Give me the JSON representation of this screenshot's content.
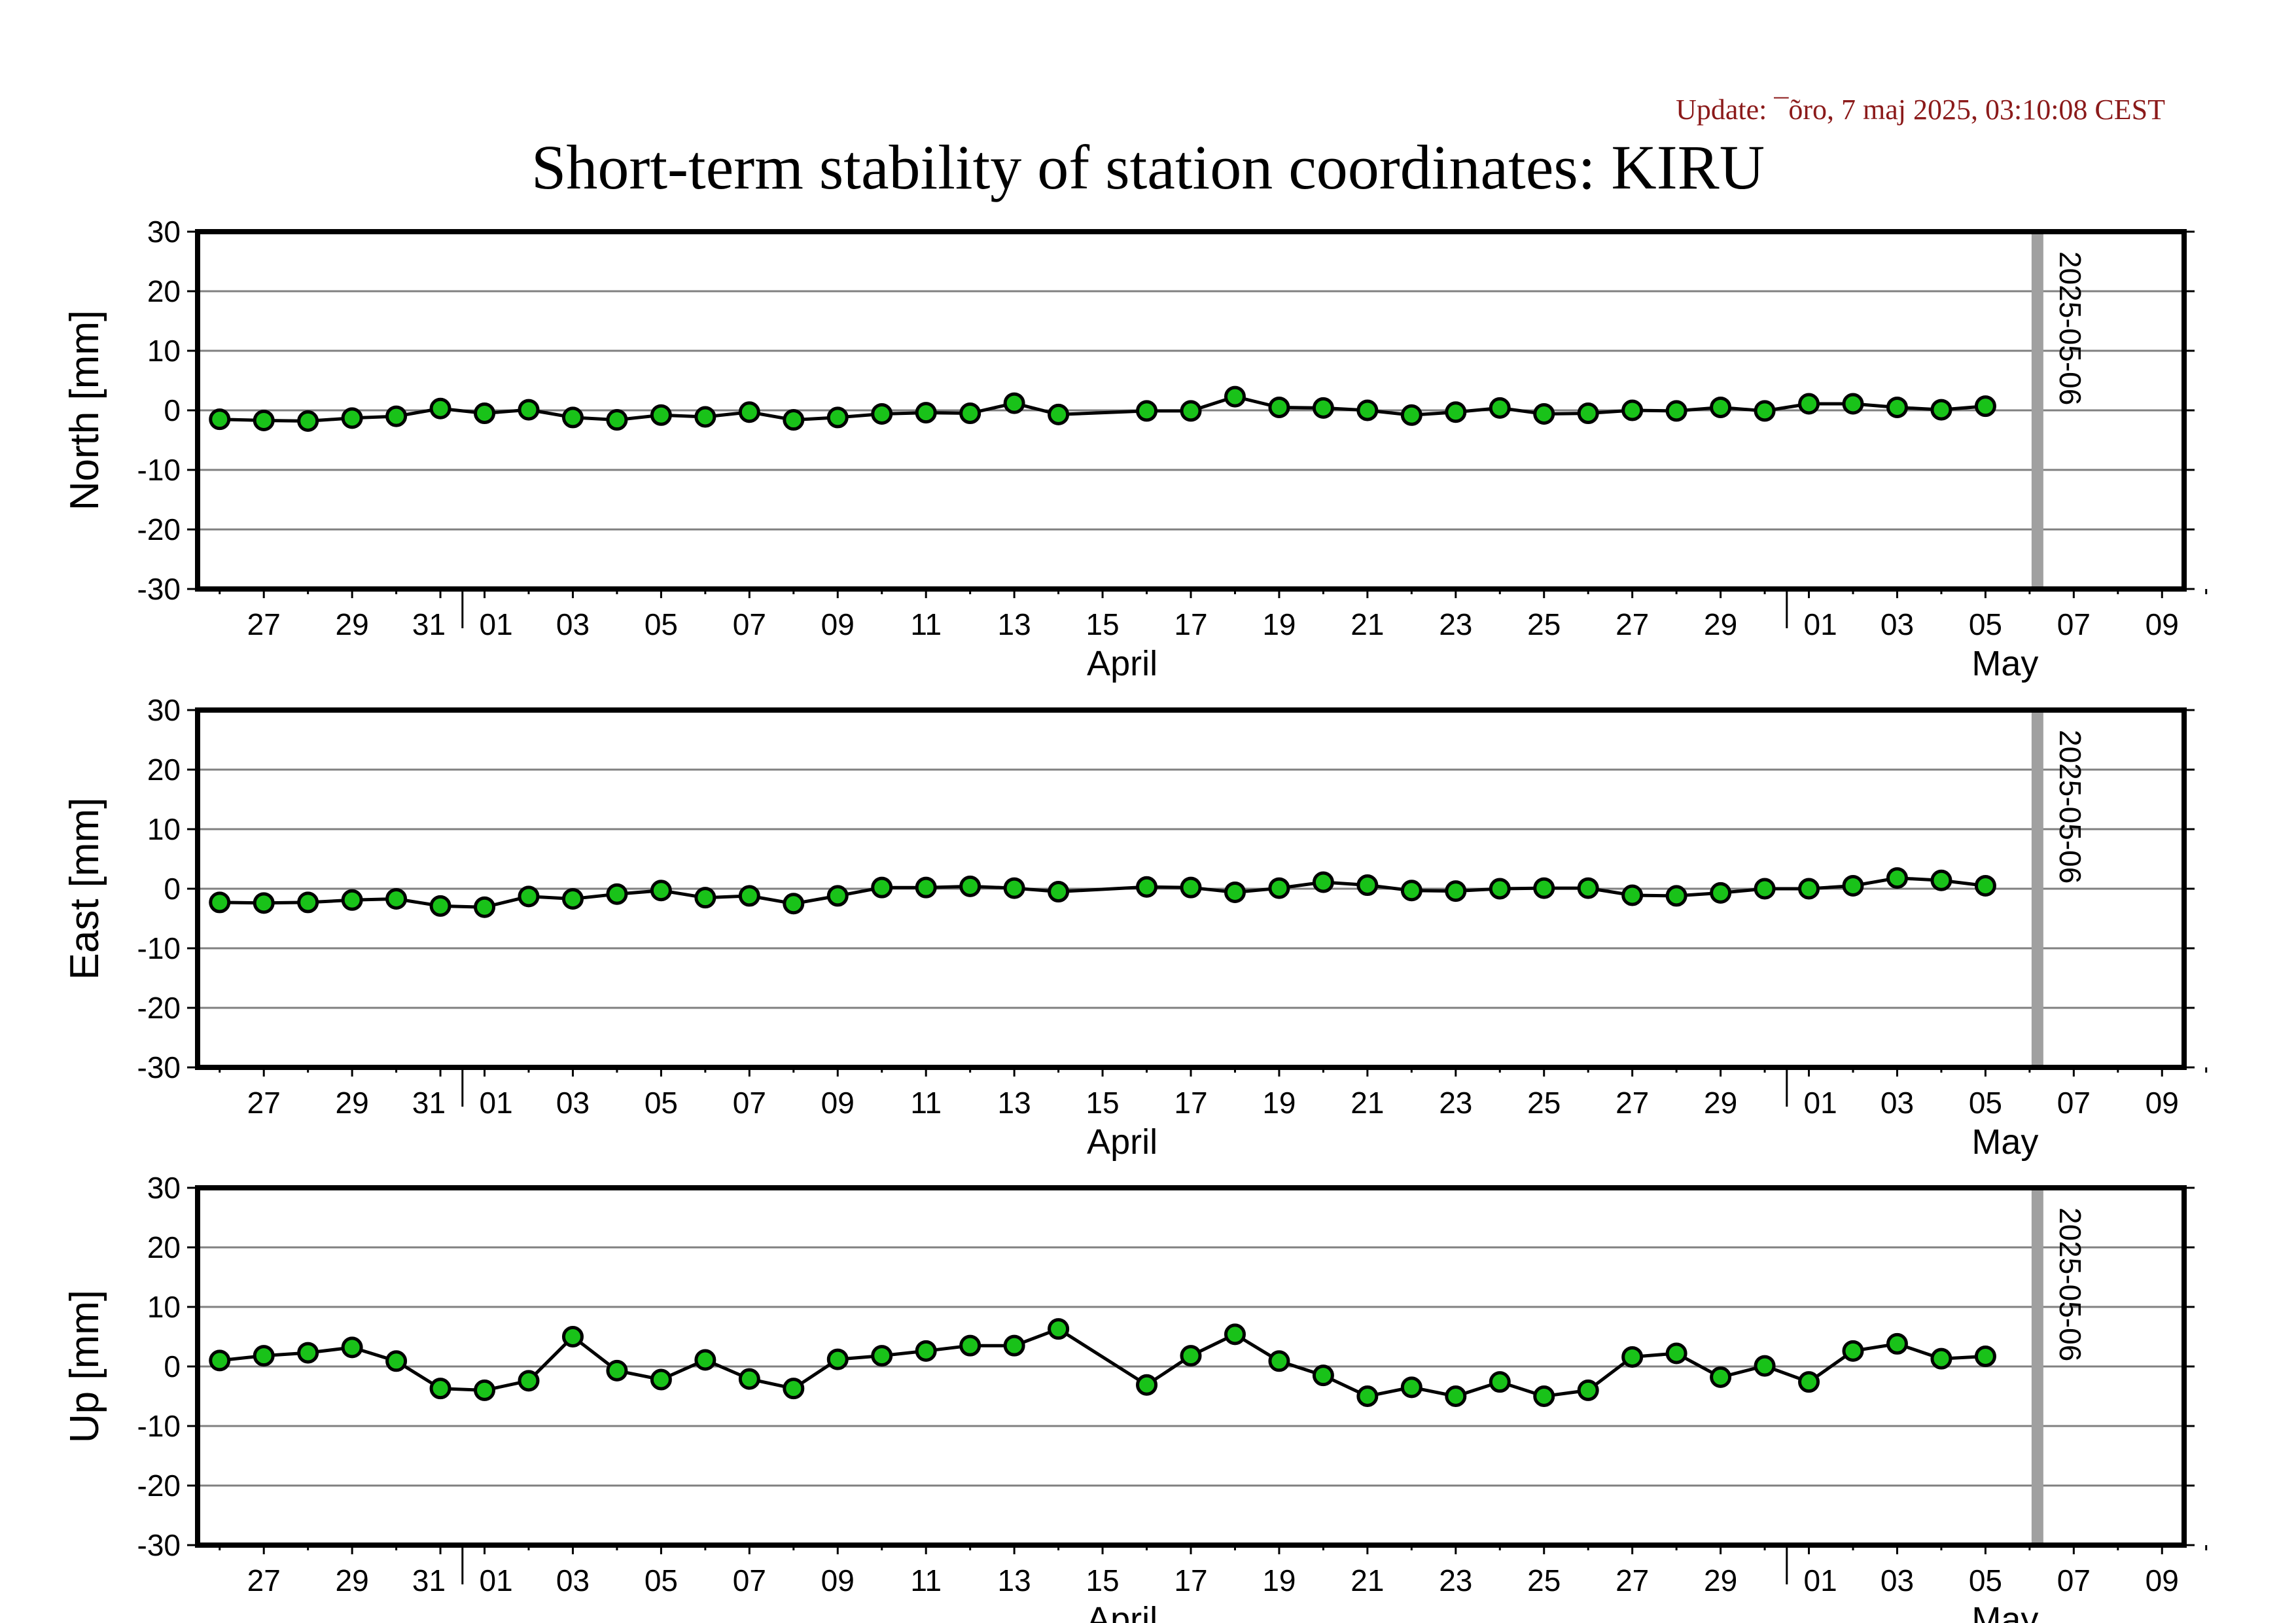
{
  "update_text": "Update: ¯õro, 7 maj 2025, 03:10:08 CEST",
  "title": "Short-term stability of station coordinates: KIRU",
  "colors": {
    "point_fill": "#19c219",
    "point_stroke": "#000000",
    "line": "#000000",
    "grid": "#808080",
    "marker_line": "#a0a0a0",
    "update_text": "#8b1a1a"
  },
  "chart_data": [
    {
      "type": "line",
      "ylabel": "North [mm]",
      "ylim": [
        -30,
        30
      ],
      "yticks": [
        30,
        20,
        10,
        0,
        -10,
        -20,
        -30
      ],
      "grid": true,
      "x_start": "2025-03-26",
      "x_end": "2025-05-10",
      "xtick_labels": [
        "27",
        "29",
        "31",
        "01",
        "03",
        "05",
        "07",
        "09",
        "11",
        "13",
        "15",
        "17",
        "19",
        "21",
        "23",
        "25",
        "27",
        "29",
        "01",
        "03",
        "05",
        "07",
        "09"
      ],
      "month_labels": [
        "April",
        "May"
      ],
      "marker_date": "2025-05-06",
      "marker_label": "2025-05-06",
      "x": [
        "2025-03-26",
        "2025-03-27",
        "2025-03-28",
        "2025-03-29",
        "2025-03-30",
        "2025-03-31",
        "2025-04-01",
        "2025-04-02",
        "2025-04-03",
        "2025-04-04",
        "2025-04-05",
        "2025-04-06",
        "2025-04-07",
        "2025-04-08",
        "2025-04-09",
        "2025-04-10",
        "2025-04-11",
        "2025-04-12",
        "2025-04-13",
        "2025-04-14",
        "2025-04-16",
        "2025-04-17",
        "2025-04-18",
        "2025-04-19",
        "2025-04-20",
        "2025-04-21",
        "2025-04-22",
        "2025-04-23",
        "2025-04-24",
        "2025-04-25",
        "2025-04-26",
        "2025-04-27",
        "2025-04-28",
        "2025-04-29",
        "2025-04-30",
        "2025-05-01",
        "2025-05-02",
        "2025-05-03",
        "2025-05-04",
        "2025-05-05"
      ],
      "y": [
        -1.5,
        -1.7,
        -1.8,
        -1.3,
        -1.0,
        0.3,
        -0.5,
        0.1,
        -1.2,
        -1.6,
        -0.8,
        -1.1,
        -0.3,
        -1.6,
        -1.2,
        -0.6,
        -0.4,
        -0.5,
        1.2,
        -0.7,
        -0.1,
        -0.1,
        2.3,
        0.5,
        0.4,
        0.0,
        -0.8,
        -0.3,
        0.4,
        -0.6,
        -0.5,
        0.0,
        -0.1,
        0.5,
        -0.1,
        1.1,
        1.1,
        0.5,
        0.1,
        0.7
      ]
    },
    {
      "type": "line",
      "ylabel": "East [mm]",
      "ylim": [
        -30,
        30
      ],
      "yticks": [
        30,
        20,
        10,
        0,
        -10,
        -20,
        -30
      ],
      "grid": true,
      "x_start": "2025-03-26",
      "x_end": "2025-05-10",
      "xtick_labels": [
        "27",
        "29",
        "31",
        "01",
        "03",
        "05",
        "07",
        "09",
        "11",
        "13",
        "15",
        "17",
        "19",
        "21",
        "23",
        "25",
        "27",
        "29",
        "01",
        "03",
        "05",
        "07",
        "09"
      ],
      "month_labels": [
        "April",
        "May"
      ],
      "marker_date": "2025-05-06",
      "marker_label": "2025-05-06",
      "x": [
        "2025-03-26",
        "2025-03-27",
        "2025-03-28",
        "2025-03-29",
        "2025-03-30",
        "2025-03-31",
        "2025-04-01",
        "2025-04-02",
        "2025-04-03",
        "2025-04-04",
        "2025-04-05",
        "2025-04-06",
        "2025-04-07",
        "2025-04-08",
        "2025-04-09",
        "2025-04-10",
        "2025-04-11",
        "2025-04-12",
        "2025-04-13",
        "2025-04-14",
        "2025-04-16",
        "2025-04-17",
        "2025-04-18",
        "2025-04-19",
        "2025-04-20",
        "2025-04-21",
        "2025-04-22",
        "2025-04-23",
        "2025-04-24",
        "2025-04-25",
        "2025-04-26",
        "2025-04-27",
        "2025-04-28",
        "2025-04-29",
        "2025-04-30",
        "2025-05-01",
        "2025-05-02",
        "2025-05-03",
        "2025-05-04",
        "2025-05-05"
      ],
      "y": [
        -2.3,
        -2.4,
        -2.3,
        -1.9,
        -1.7,
        -2.9,
        -3.1,
        -1.3,
        -1.7,
        -0.9,
        -0.3,
        -1.5,
        -1.2,
        -2.5,
        -1.2,
        0.2,
        0.2,
        0.4,
        0.1,
        -0.5,
        0.3,
        0.2,
        -0.6,
        0.1,
        1.1,
        0.6,
        -0.3,
        -0.4,
        0.0,
        0.1,
        0.1,
        -1.1,
        -1.2,
        -0.7,
        0.0,
        0.0,
        0.5,
        1.8,
        1.4,
        0.5
      ]
    },
    {
      "type": "line",
      "ylabel": "Up [mm]",
      "ylim": [
        -30,
        30
      ],
      "yticks": [
        30,
        20,
        10,
        0,
        -10,
        -20,
        -30
      ],
      "grid": true,
      "x_start": "2025-03-26",
      "x_end": "2025-05-10",
      "xtick_labels": [
        "27",
        "29",
        "31",
        "01",
        "03",
        "05",
        "07",
        "09",
        "11",
        "13",
        "15",
        "17",
        "19",
        "21",
        "23",
        "25",
        "27",
        "29",
        "01",
        "03",
        "05",
        "07",
        "09"
      ],
      "month_labels": [
        "April",
        "May"
      ],
      "marker_date": "2025-05-06",
      "marker_label": "2025-05-06",
      "x": [
        "2025-03-26",
        "2025-03-27",
        "2025-03-28",
        "2025-03-29",
        "2025-03-30",
        "2025-03-31",
        "2025-04-01",
        "2025-04-02",
        "2025-04-03",
        "2025-04-04",
        "2025-04-05",
        "2025-04-06",
        "2025-04-07",
        "2025-04-08",
        "2025-04-09",
        "2025-04-10",
        "2025-04-11",
        "2025-04-12",
        "2025-04-13",
        "2025-04-14",
        "2025-04-16",
        "2025-04-17",
        "2025-04-18",
        "2025-04-19",
        "2025-04-20",
        "2025-04-21",
        "2025-04-22",
        "2025-04-23",
        "2025-04-24",
        "2025-04-25",
        "2025-04-26",
        "2025-04-27",
        "2025-04-28",
        "2025-04-29",
        "2025-04-30",
        "2025-05-01",
        "2025-05-02",
        "2025-05-03",
        "2025-05-04",
        "2025-05-05"
      ],
      "y": [
        1.0,
        1.8,
        2.3,
        3.2,
        0.9,
        -3.7,
        -4.0,
        -2.4,
        5.0,
        -0.7,
        -2.2,
        1.1,
        -2.1,
        -3.7,
        1.2,
        1.8,
        2.6,
        3.5,
        3.5,
        6.3,
        -3.1,
        1.8,
        5.4,
        0.9,
        -1.5,
        -5.0,
        -3.5,
        -5.0,
        -2.6,
        -5.0,
        -4.0,
        1.6,
        2.2,
        -1.8,
        0.1,
        -2.6,
        2.6,
        3.8,
        1.3,
        1.7
      ]
    }
  ]
}
